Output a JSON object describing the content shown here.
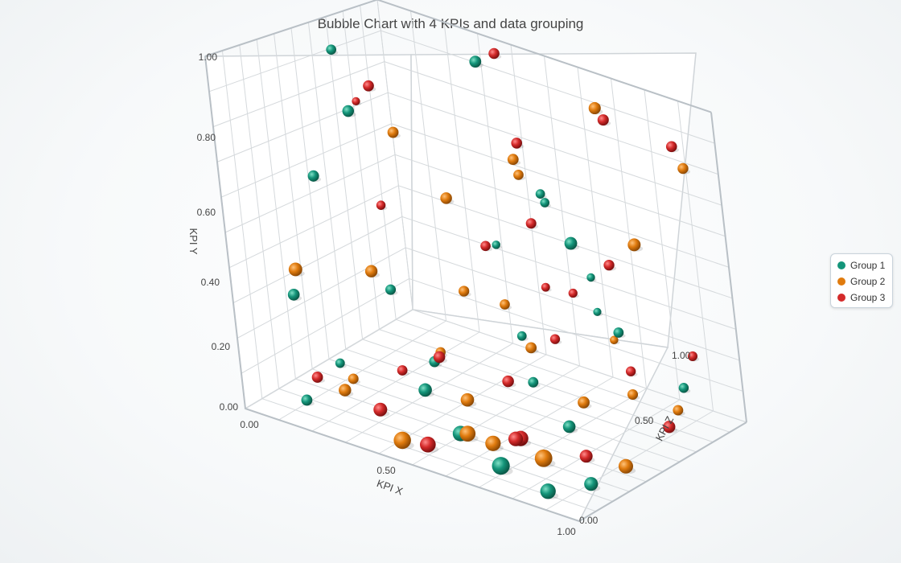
{
  "chart_data": {
    "type": "scatter",
    "subtype": "3d-bubble",
    "title": "Bubble Chart with 4 KPIs and data grouping",
    "xlabel": "KPI X",
    "ylabel": "KPI Y",
    "zlabel": "KPI Z",
    "xlim": [
      0,
      1
    ],
    "ylim": [
      0,
      1
    ],
    "zlim": [
      0,
      1
    ],
    "x_ticks": [
      "0.00",
      "0.50",
      "1.00"
    ],
    "y_ticks": [
      "0.00",
      "0.20",
      "0.40",
      "0.60",
      "0.80",
      "1.00"
    ],
    "z_ticks": [
      "0.00",
      "0.50",
      "1.00"
    ],
    "grid": true,
    "legend_position": "right",
    "series": [
      {
        "name": "Group 1",
        "color": "#14957a",
        "points": [
          [
            0.05,
            0.93,
            0.62,
            0.6
          ],
          [
            0.12,
            0.78,
            0.55,
            0.7
          ],
          [
            0.1,
            0.62,
            0.35,
            0.6
          ],
          [
            0.08,
            0.3,
            0.2,
            0.6
          ],
          [
            0.35,
            0.95,
            0.88,
            0.8
          ],
          [
            0.45,
            0.45,
            0.7,
            0.4
          ],
          [
            0.55,
            0.62,
            0.8,
            0.5
          ],
          [
            0.7,
            0.7,
            0.55,
            0.4
          ],
          [
            0.85,
            0.66,
            0.4,
            0.6
          ],
          [
            0.3,
            0.35,
            0.35,
            0.5
          ],
          [
            0.65,
            0.38,
            0.85,
            0.4
          ],
          [
            0.8,
            0.3,
            0.7,
            0.5
          ],
          [
            0.2,
            0.14,
            0.2,
            0.4
          ],
          [
            0.4,
            0.1,
            0.3,
            0.7
          ],
          [
            0.55,
            0.05,
            0.2,
            0.8
          ],
          [
            0.72,
            0.04,
            0.1,
            0.9
          ],
          [
            0.88,
            0.03,
            0.06,
            0.7
          ],
          [
            0.95,
            0.04,
            0.18,
            0.6
          ],
          [
            0.6,
            0.12,
            0.55,
            0.5
          ],
          [
            0.3,
            0.08,
            0.55,
            0.6
          ],
          [
            0.47,
            0.16,
            0.75,
            0.5
          ],
          [
            0.78,
            0.09,
            0.4,
            0.6
          ],
          [
            0.15,
            0.05,
            0.08,
            0.5
          ],
          [
            0.63,
            0.25,
            0.9,
            0.4
          ],
          [
            0.9,
            0.12,
            0.85,
            0.5
          ]
        ]
      },
      {
        "name": "Group 2",
        "color": "#e07b0e",
        "points": [
          [
            0.15,
            0.42,
            0.1,
            0.7
          ],
          [
            0.28,
            0.78,
            0.5,
            0.6
          ],
          [
            0.45,
            0.65,
            0.45,
            0.6
          ],
          [
            0.6,
            0.74,
            0.6,
            0.5
          ],
          [
            0.75,
            0.96,
            0.8,
            0.7
          ],
          [
            0.88,
            0.6,
            0.7,
            0.7
          ],
          [
            0.33,
            0.45,
            0.2,
            0.6
          ],
          [
            0.5,
            0.4,
            0.4,
            0.5
          ],
          [
            0.7,
            0.86,
            0.4,
            0.5
          ],
          [
            0.92,
            0.8,
            0.95,
            0.6
          ],
          [
            0.25,
            0.1,
            0.12,
            0.6
          ],
          [
            0.45,
            0.04,
            0.05,
            0.9
          ],
          [
            0.62,
            0.03,
            0.25,
            0.8
          ],
          [
            0.8,
            0.06,
            0.2,
            0.9
          ],
          [
            0.97,
            0.05,
            0.35,
            0.7
          ],
          [
            0.35,
            0.14,
            0.5,
            0.5
          ],
          [
            0.55,
            0.18,
            0.65,
            0.6
          ],
          [
            0.7,
            0.2,
            0.85,
            0.4
          ],
          [
            0.85,
            0.14,
            0.65,
            0.5
          ],
          [
            0.18,
            0.06,
            0.3,
            0.5
          ],
          [
            0.5,
            0.09,
            0.35,
            0.7
          ],
          [
            0.75,
            0.11,
            0.55,
            0.6
          ],
          [
            0.93,
            0.09,
            0.75,
            0.5
          ],
          [
            0.4,
            0.22,
            0.8,
            0.6
          ],
          [
            0.6,
            0.08,
            0.15,
            0.8
          ]
        ]
      },
      {
        "name": "Group 3",
        "color": "#d42a2a",
        "points": [
          [
            0.4,
            0.99,
            0.9,
            0.7
          ],
          [
            0.22,
            0.9,
            0.5,
            0.6
          ],
          [
            0.55,
            0.8,
            0.7,
            0.6
          ],
          [
            0.3,
            0.6,
            0.35,
            0.4
          ],
          [
            0.65,
            0.62,
            0.55,
            0.5
          ],
          [
            0.8,
            0.95,
            0.75,
            0.6
          ],
          [
            0.92,
            0.88,
            0.9,
            0.6
          ],
          [
            0.85,
            0.55,
            0.6,
            0.5
          ],
          [
            0.12,
            0.8,
            0.6,
            0.4
          ],
          [
            0.5,
            0.5,
            0.55,
            0.5
          ],
          [
            0.7,
            0.4,
            0.65,
            0.4
          ],
          [
            0.18,
            0.12,
            0.1,
            0.5
          ],
          [
            0.32,
            0.05,
            0.18,
            0.7
          ],
          [
            0.5,
            0.03,
            0.1,
            0.8
          ],
          [
            0.68,
            0.05,
            0.3,
            0.8
          ],
          [
            0.85,
            0.04,
            0.35,
            0.6
          ],
          [
            0.98,
            0.1,
            0.6,
            0.6
          ],
          [
            0.4,
            0.17,
            0.4,
            0.6
          ],
          [
            0.6,
            0.21,
            0.7,
            0.5
          ],
          [
            0.78,
            0.15,
            0.78,
            0.5
          ],
          [
            0.28,
            0.09,
            0.4,
            0.5
          ],
          [
            0.55,
            0.12,
            0.5,
            0.6
          ],
          [
            0.9,
            0.2,
            0.92,
            0.5
          ],
          [
            0.45,
            0.25,
            0.95,
            0.5
          ],
          [
            0.72,
            0.09,
            0.2,
            0.7
          ]
        ]
      }
    ]
  }
}
